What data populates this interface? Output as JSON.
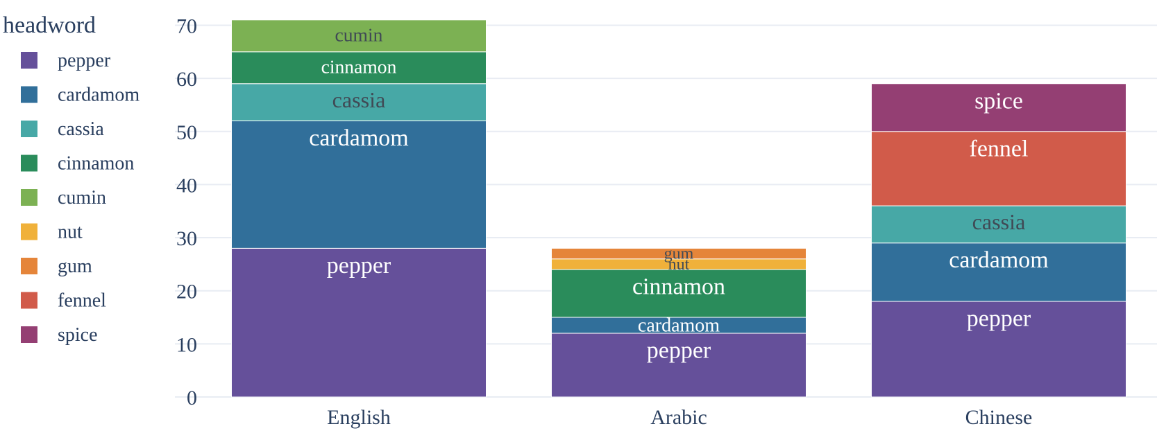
{
  "chart_data": {
    "type": "bar",
    "stacked": true,
    "categories": [
      "English",
      "Arabic",
      "Chinese"
    ],
    "ylim": [
      0,
      70
    ],
    "yticks": [
      0,
      10,
      20,
      30,
      40,
      50,
      60,
      70
    ],
    "grid": true,
    "legend": {
      "title": "headword",
      "placement": "left",
      "items": [
        "pepper",
        "cardamom",
        "cassia",
        "cinnamon",
        "cumin",
        "nut",
        "gum",
        "fennel",
        "spice"
      ]
    },
    "series": [
      {
        "name": "pepper",
        "color": "#65509a",
        "values": [
          28,
          12,
          18
        ]
      },
      {
        "name": "cardamom",
        "color": "#316f9a",
        "values": [
          24,
          3,
          11
        ]
      },
      {
        "name": "cassia",
        "color": "#47a8a6",
        "values": [
          7,
          0,
          7
        ]
      },
      {
        "name": "cinnamon",
        "color": "#2a8c5b",
        "values": [
          6,
          9,
          0
        ]
      },
      {
        "name": "cumin",
        "color": "#7cb153",
        "values": [
          6,
          0,
          0
        ]
      },
      {
        "name": "nut",
        "color": "#f0b13a",
        "values": [
          0,
          2,
          0
        ]
      },
      {
        "name": "gum",
        "color": "#e5853a",
        "values": [
          0,
          2,
          0
        ]
      },
      {
        "name": "fennel",
        "color": "#d15b4a",
        "values": [
          0,
          0,
          14
        ]
      },
      {
        "name": "spice",
        "color": "#943f73",
        "values": [
          0,
          0,
          9
        ]
      }
    ]
  }
}
